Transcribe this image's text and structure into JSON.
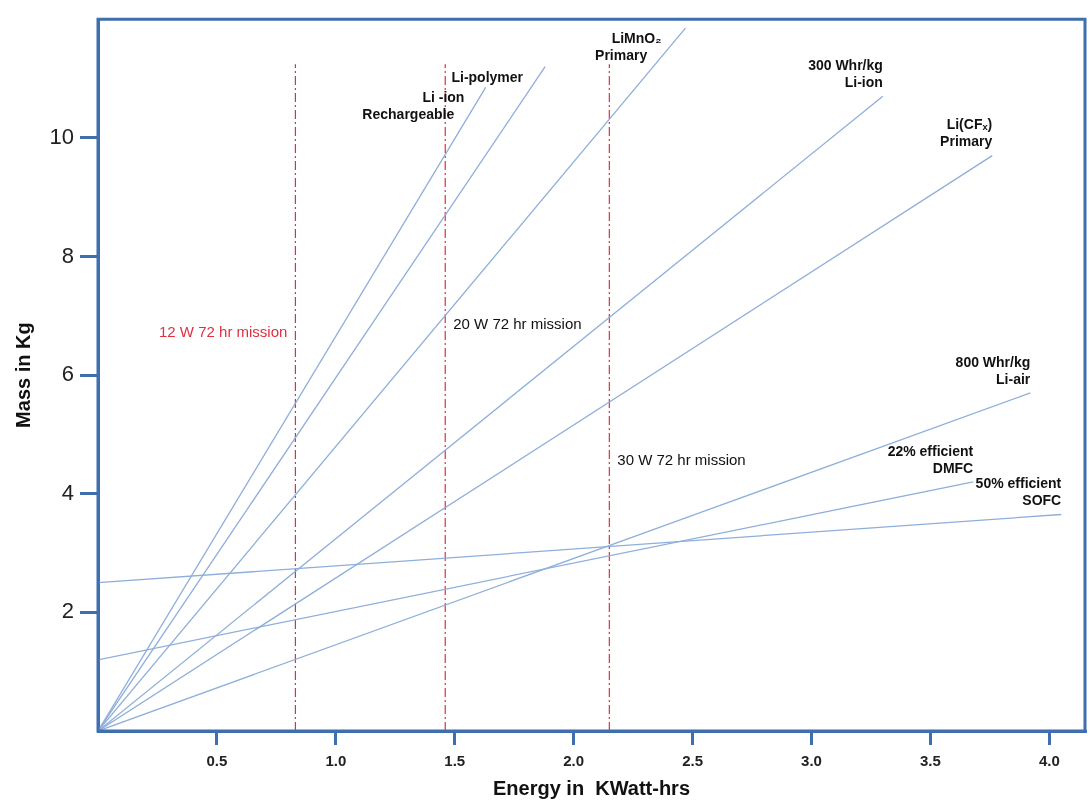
{
  "chart_data": {
    "type": "line",
    "xlabel": "Energy in  KWatt-hrs",
    "ylabel": "Mass in Kg",
    "xlim": [
      0,
      4.15
    ],
    "ylim": [
      0,
      12
    ],
    "xticks": [
      0.5,
      {
        "value": 1,
        "label": "1.0"
      },
      1.5,
      {
        "value": 2,
        "label": "2.0"
      },
      2.5,
      {
        "value": 3,
        "label": "3.0"
      },
      3.5,
      {
        "value": 4,
        "label": "4.0"
      }
    ],
    "yticks": [
      2,
      4,
      6,
      8,
      10
    ],
    "line_style": "solid",
    "series": [
      {
        "name": "Li -ion\nRechargeable",
        "color": "#8eaedb",
        "x": [
          0,
          1.63
        ],
        "values": [
          0,
          10.85
        ]
      },
      {
        "name": "Li-polymer",
        "color": "#8eaedb",
        "x": [
          0,
          1.88
        ],
        "values": [
          0,
          11.2
        ]
      },
      {
        "name": "LiMnO₂\nPrimary",
        "color": "#8eaedb",
        "x": [
          0,
          2.47
        ],
        "values": [
          0,
          11.85
        ]
      },
      {
        "name": "300 Whr/kg\nLi-ion",
        "color": "#8eaedb",
        "x": [
          0,
          3.3
        ],
        "values": [
          0,
          10.7
        ]
      },
      {
        "name": "Li(CFₓ)\nPrimary",
        "color": "#8eaedb",
        "x": [
          0,
          3.76
        ],
        "values": [
          0,
          9.7
        ]
      },
      {
        "name": "800 Whr/kg\nLi-air",
        "color": "#8eaedb",
        "x": [
          0,
          3.92
        ],
        "values": [
          0,
          5.7
        ]
      },
      {
        "name": "22% efficient\nDMFC",
        "color": "#8eaedb",
        "x": [
          0,
          3.68
        ],
        "values": [
          1.2,
          4.2
        ]
      },
      {
        "name": "50% efficient\nSOFC",
        "color": "#8eaedb",
        "x": [
          0,
          4.05
        ],
        "values": [
          2.5,
          3.65
        ]
      }
    ],
    "ref_lines": [
      {
        "axis": "x",
        "value": 0.83,
        "color": "#e03040",
        "line_style": "dashed",
        "label": "12 W 72 hr mission"
      },
      {
        "axis": "x",
        "value": 1.46,
        "color": "#e03040",
        "line_style": "dashed",
        "label": "20 W 72 hr mission"
      },
      {
        "axis": "x",
        "value": 2.15,
        "color": "#e03040",
        "line_style": "dashed",
        "label": "30 W 72 hr mission"
      }
    ]
  }
}
